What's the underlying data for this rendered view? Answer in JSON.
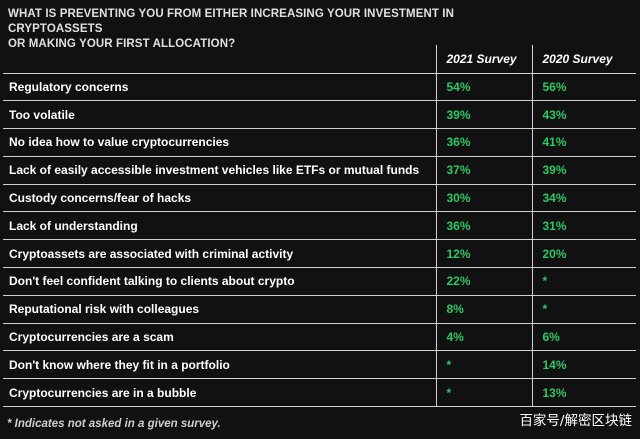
{
  "title_lines": [
    "WHAT IS PREVENTING YOU FROM EITHER INCREASING YOUR INVESTMENT IN CRYPTOASSETS",
    "OR MAKING YOUR FIRST ALLOCATION?"
  ],
  "footnote": "* Indicates not asked in a given survey.",
  "watermark": "百家号/解密区块链",
  "colors": {
    "value_green": "#2ec866",
    "background": "#111111",
    "rule": "#cfcfcf"
  },
  "chart_data": {
    "type": "table",
    "title": "WHAT IS PREVENTING YOU FROM EITHER INCREASING YOUR INVESTMENT IN CRYPTOASSETS OR MAKING YOUR FIRST ALLOCATION?",
    "columns": [
      "2021 Survey",
      "2020 Survey"
    ],
    "rows": [
      {
        "label": "Regulatory concerns",
        "values": [
          "54%",
          "56%"
        ]
      },
      {
        "label": "Too volatile",
        "values": [
          "39%",
          "43%"
        ]
      },
      {
        "label": "No idea how to value cryptocurrencies",
        "values": [
          "36%",
          "41%"
        ]
      },
      {
        "label": "Lack of easily accessible investment vehicles like ETFs or mutual funds",
        "values": [
          "37%",
          "39%"
        ]
      },
      {
        "label": "Custody concerns/fear of hacks",
        "values": [
          "30%",
          "34%"
        ]
      },
      {
        "label": "Lack of understanding",
        "values": [
          "36%",
          "31%"
        ]
      },
      {
        "label": "Cryptoassets are associated with criminal activity",
        "values": [
          "12%",
          "20%"
        ]
      },
      {
        "label": "Don't feel confident talking to clients about crypto",
        "values": [
          "22%",
          "*"
        ]
      },
      {
        "label": "Reputational risk with colleagues",
        "values": [
          "8%",
          "*"
        ]
      },
      {
        "label": "Cryptocurrencies are a scam",
        "values": [
          "4%",
          "6%"
        ]
      },
      {
        "label": "Don't know where they fit in a portfolio",
        "values": [
          "*",
          "14%"
        ]
      },
      {
        "label": "Cryptocurrencies are in a bubble",
        "values": [
          "*",
          "13%"
        ]
      }
    ]
  }
}
